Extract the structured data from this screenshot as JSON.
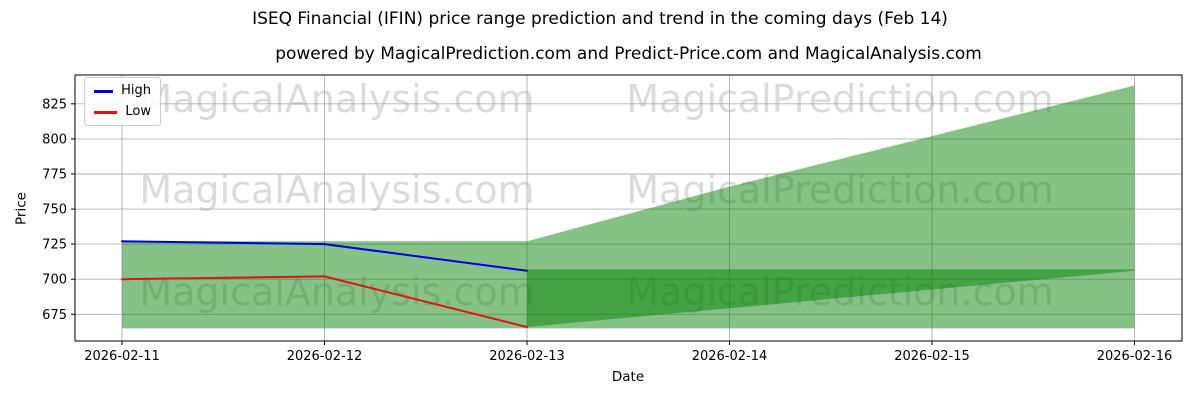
{
  "title": "ISEQ Financial (IFIN) price range prediction and trend in the coming days (Feb 14)",
  "subtitle": "powered by MagicalPrediction.com and Predict-Price.com and MagicalAnalysis.com",
  "watermarks": {
    "left": "MagicalAnalysis.com",
    "right": "MagicalPrediction.com"
  },
  "chart_data": {
    "type": "line",
    "title": "ISEQ Financial (IFIN) price range prediction and trend in the coming days (Feb 14)",
    "xlabel": "Date",
    "ylabel": "Price",
    "x": [
      "2026-02-11",
      "2026-02-12",
      "2026-02-13",
      "2026-02-14",
      "2026-02-15",
      "2026-02-16"
    ],
    "yticks": [
      675,
      700,
      725,
      750,
      775,
      800,
      825
    ],
    "ylim": [
      656,
      845.5
    ],
    "grid": true,
    "legend_position": "upper-left",
    "series": [
      {
        "name": "High",
        "color": "#0000e6",
        "x_indices": [
          0,
          1,
          2
        ],
        "values": [
          727,
          725,
          706
        ]
      },
      {
        "name": "Low",
        "color": "#e61010",
        "x_indices": [
          0,
          1,
          2
        ],
        "values": [
          700,
          702,
          666
        ]
      }
    ],
    "bands": [
      {
        "name": "historical-range",
        "color": "#008000",
        "opacity": 0.48,
        "x_indices": [
          0,
          1,
          2
        ],
        "top": [
          727,
          727,
          727
        ],
        "bottom": [
          665,
          665,
          665
        ]
      },
      {
        "name": "prediction-fan",
        "color": "#008000",
        "opacity": 0.48,
        "x_indices": [
          2,
          3,
          4,
          5
        ],
        "top": [
          727,
          766,
          802,
          838
        ],
        "bottom": [
          665,
          665,
          665,
          665
        ]
      },
      {
        "name": "prediction-core",
        "color": "#008000",
        "opacity": 0.48,
        "x_indices": [
          2,
          3,
          4,
          5
        ],
        "top": [
          707,
          707,
          707,
          707
        ],
        "bottom": [
          666,
          679.3,
          692.7,
          706
        ]
      }
    ]
  }
}
